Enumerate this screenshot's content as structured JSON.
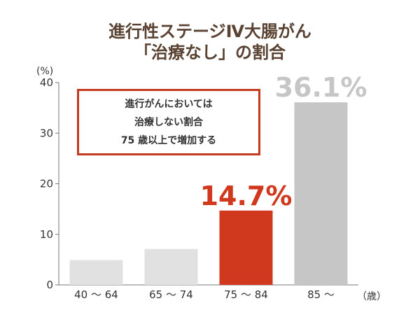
{
  "colors": {
    "title": "#5a4232",
    "highlight": "#d0391e",
    "bar_light": "#e1e1e1",
    "bar_mid": "#c6c6c6",
    "callout_border": "#c33a1f"
  },
  "chart_data": {
    "type": "bar",
    "title_line1": "進行性ステージⅣ大腸がん",
    "title_line2": "「治療なし」の割合",
    "y_unit": "(%)",
    "x_unit": "（歳）",
    "ylim": [
      0,
      40
    ],
    "y_ticks": [
      0,
      10,
      20,
      30,
      40
    ],
    "categories": [
      "40 ～ 64",
      "65 ～ 74",
      "75 ～ 84",
      "85 ～"
    ],
    "values": [
      4.9,
      7.1,
      14.7,
      36.1
    ],
    "bar_colors": [
      "#e1e1e1",
      "#e1e1e1",
      "#d0391e",
      "#c6c6c6"
    ],
    "data_labels": [
      {
        "index": 2,
        "text": "14.7%",
        "color": "#d0391e"
      },
      {
        "index": 3,
        "text": "36.1%",
        "color": "#c6c6c6"
      }
    ],
    "grid": false,
    "annotation": {
      "line1": "進行がんにおいては",
      "line2": "治療しない割合",
      "line3": "75 歳以上で増加する"
    }
  }
}
